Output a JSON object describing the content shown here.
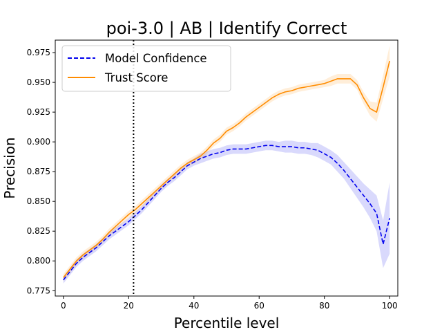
{
  "chart_data": {
    "type": "line",
    "title": "poi-3.0 | AB | Identify Correct",
    "xlabel": "Percentile level",
    "ylabel": "Precision",
    "xlim": [
      -2.5,
      102.5
    ],
    "ylim": [
      0.7705,
      0.9855
    ],
    "xticks": [
      0,
      20,
      40,
      60,
      80,
      100
    ],
    "xtick_labels": [
      "0",
      "20",
      "40",
      "60",
      "80",
      "100"
    ],
    "yticks": [
      0.775,
      0.8,
      0.825,
      0.85,
      0.875,
      0.9,
      0.925,
      0.95,
      0.975
    ],
    "ytick_labels": [
      "0.775",
      "0.800",
      "0.825",
      "0.850",
      "0.875",
      "0.900",
      "0.925",
      "0.950",
      "0.975"
    ],
    "grid": false,
    "legend_position": "top-left",
    "vline": {
      "x": 21.5,
      "style": "dotted",
      "color": "#000000"
    },
    "x": [
      0,
      2,
      4,
      6,
      8,
      10,
      12,
      14,
      16,
      18,
      20,
      22,
      24,
      26,
      28,
      30,
      32,
      34,
      36,
      38,
      40,
      42,
      44,
      46,
      48,
      50,
      52,
      54,
      56,
      58,
      60,
      62,
      64,
      66,
      68,
      70,
      72,
      74,
      76,
      78,
      80,
      82,
      84,
      86,
      88,
      90,
      92,
      94,
      96,
      98,
      100
    ],
    "series": [
      {
        "name": "Model Confidence",
        "color": "#0000ee",
        "line_style": "dashed",
        "values": [
          0.784,
          0.791,
          0.798,
          0.803,
          0.807,
          0.811,
          0.816,
          0.821,
          0.825,
          0.829,
          0.833,
          0.838,
          0.843,
          0.849,
          0.855,
          0.861,
          0.866,
          0.87,
          0.875,
          0.88,
          0.883,
          0.886,
          0.888,
          0.89,
          0.891,
          0.893,
          0.894,
          0.894,
          0.894,
          0.895,
          0.896,
          0.897,
          0.897,
          0.896,
          0.896,
          0.896,
          0.895,
          0.895,
          0.894,
          0.893,
          0.89,
          0.887,
          0.882,
          0.876,
          0.869,
          0.862,
          0.855,
          0.848,
          0.84,
          0.814,
          0.836
        ],
        "band_half_width": [
          0.003,
          0.003,
          0.003,
          0.003,
          0.003,
          0.003,
          0.003,
          0.003,
          0.003,
          0.003,
          0.003,
          0.003,
          0.003,
          0.003,
          0.003,
          0.003,
          0.003,
          0.003,
          0.003,
          0.003,
          0.003,
          0.004,
          0.004,
          0.004,
          0.004,
          0.004,
          0.004,
          0.004,
          0.004,
          0.004,
          0.004,
          0.004,
          0.004,
          0.004,
          0.005,
          0.005,
          0.005,
          0.005,
          0.005,
          0.006,
          0.006,
          0.006,
          0.007,
          0.007,
          0.008,
          0.009,
          0.01,
          0.012,
          0.015,
          0.02,
          0.03
        ]
      },
      {
        "name": "Trust Score",
        "color": "#ff8c00",
        "line_style": "solid",
        "values": [
          0.786,
          0.793,
          0.8,
          0.805,
          0.809,
          0.813,
          0.818,
          0.824,
          0.829,
          0.834,
          0.839,
          0.843,
          0.848,
          0.853,
          0.858,
          0.863,
          0.868,
          0.873,
          0.878,
          0.882,
          0.885,
          0.888,
          0.893,
          0.899,
          0.903,
          0.909,
          0.912,
          0.916,
          0.921,
          0.925,
          0.929,
          0.933,
          0.937,
          0.94,
          0.942,
          0.943,
          0.945,
          0.946,
          0.947,
          0.948,
          0.949,
          0.951,
          0.953,
          0.953,
          0.953,
          0.948,
          0.937,
          0.928,
          0.925,
          0.946,
          0.968
        ],
        "band_half_width": [
          0.003,
          0.003,
          0.003,
          0.003,
          0.003,
          0.003,
          0.003,
          0.003,
          0.003,
          0.003,
          0.003,
          0.003,
          0.003,
          0.003,
          0.003,
          0.003,
          0.003,
          0.003,
          0.003,
          0.003,
          0.003,
          0.003,
          0.003,
          0.003,
          0.003,
          0.003,
          0.003,
          0.003,
          0.003,
          0.003,
          0.003,
          0.003,
          0.003,
          0.003,
          0.003,
          0.003,
          0.003,
          0.003,
          0.003,
          0.003,
          0.003,
          0.004,
          0.004,
          0.004,
          0.004,
          0.004,
          0.005,
          0.006,
          0.008,
          0.01,
          0.013
        ]
      }
    ]
  }
}
